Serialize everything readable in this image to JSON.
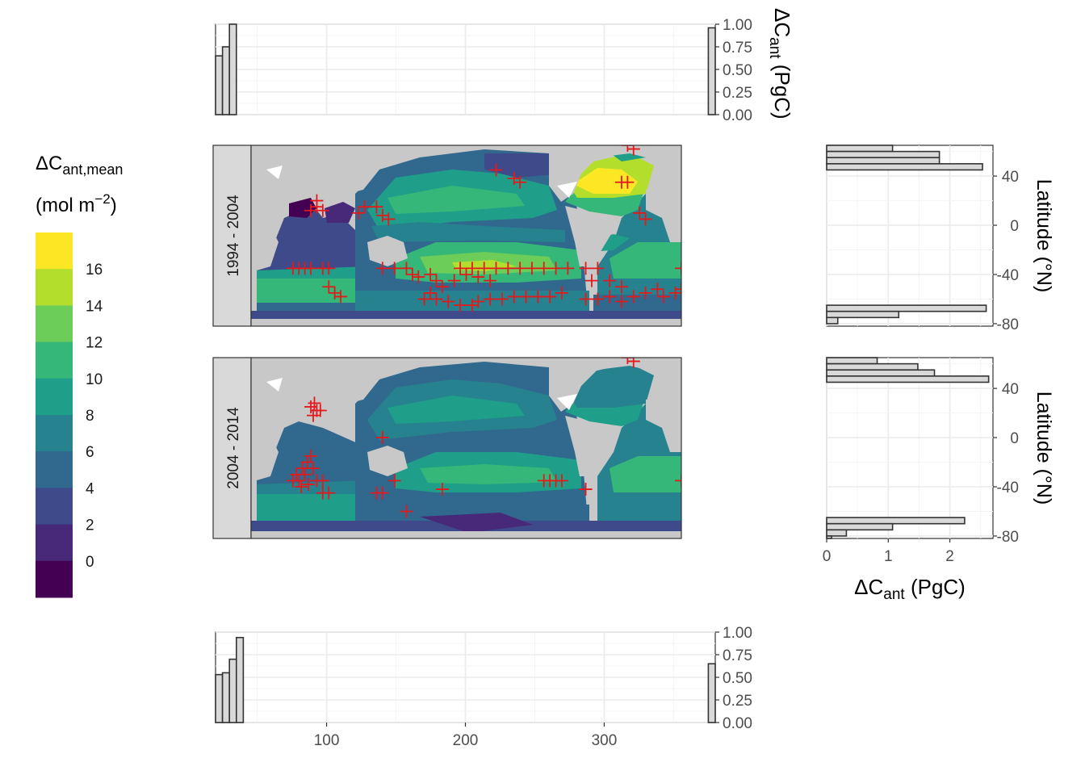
{
  "legend": {
    "title_main": "ΔC",
    "title_sub": "ant,mean",
    "unit_main": "(mol m",
    "unit_sup": "−2",
    "unit_close": ")",
    "colors": [
      "#440154",
      "#482878",
      "#3e4a89",
      "#31688e",
      "#26828e",
      "#1f9e89",
      "#35b779",
      "#6dcd59",
      "#b4de2c",
      "#fde725"
    ],
    "tick_labels": [
      "0",
      "2",
      "4",
      "6",
      "8",
      "10",
      "12",
      "14",
      "16"
    ]
  },
  "chart_data": [
    {
      "type": "bar",
      "name": "top-histogram",
      "xlim": [
        20,
        380
      ],
      "ylim": [
        0,
        1
      ],
      "y_ticks": [
        "0.00",
        "0.25",
        "0.50",
        "0.75",
        "1.00"
      ],
      "x_grid": [
        100,
        200,
        300
      ],
      "ylabel_main": "ΔC",
      "ylabel_sub": "ant",
      "ylabel_unit": " (PgC)",
      "bars": [
        {
          "x0": 20,
          "x1": 25,
          "value": 0.65
        },
        {
          "x0": 25,
          "x1": 30,
          "value": 0.75
        },
        {
          "x0": 30,
          "x1": 35,
          "value": 1.0
        },
        {
          "x0": 375,
          "x1": 380,
          "value": 0.96
        }
      ]
    },
    {
      "type": "bar",
      "name": "bottom-histogram",
      "xlim": [
        20,
        380
      ],
      "ylim": [
        0,
        1
      ],
      "y_ticks": [
        "0.00",
        "0.25",
        "0.50",
        "0.75",
        "1.00"
      ],
      "x_ticks": [
        "100",
        "200",
        "300"
      ],
      "bars": [
        {
          "x0": 20,
          "x1": 25,
          "value": 0.53
        },
        {
          "x0": 25,
          "x1": 30,
          "value": 0.55
        },
        {
          "x0": 30,
          "x1": 35,
          "value": 0.7
        },
        {
          "x0": 35,
          "x1": 40,
          "value": 0.94
        },
        {
          "x0": 375,
          "x1": 380,
          "value": 0.65
        }
      ]
    },
    {
      "type": "bar",
      "name": "right-histogram-1994-2004",
      "orientation": "horizontal",
      "xlim": [
        0,
        2.7
      ],
      "ylim": [
        -82,
        65
      ],
      "y_ticks": [
        "40",
        "0",
        "-40",
        "-80"
      ],
      "ylabel": "Latitude (°N)",
      "bars": [
        {
          "lat0": 60,
          "lat1": 65,
          "value": 1.07
        },
        {
          "lat0": 55,
          "lat1": 60,
          "value": 1.83
        },
        {
          "lat0": 50,
          "lat1": 55,
          "value": 1.83
        },
        {
          "lat0": 45,
          "lat1": 50,
          "value": 2.53
        },
        {
          "lat0": -70,
          "lat1": -65,
          "value": 2.59
        },
        {
          "lat0": -75,
          "lat1": -70,
          "value": 1.17
        },
        {
          "lat0": -80,
          "lat1": -75,
          "value": 0.18
        }
      ]
    },
    {
      "type": "bar",
      "name": "right-histogram-2004-2014",
      "orientation": "horizontal",
      "xlim": [
        0,
        2.7
      ],
      "ylim": [
        -82,
        65
      ],
      "y_ticks": [
        "40",
        "0",
        "-40",
        "-80"
      ],
      "x_ticks": [
        "0",
        "1",
        "2"
      ],
      "ylabel": "Latitude (°N)",
      "xlabel_main": "ΔC",
      "xlabel_sub": "ant",
      "xlabel_unit": " (PgC)",
      "bars": [
        {
          "lat0": 60,
          "lat1": 65,
          "value": 0.82
        },
        {
          "lat0": 55,
          "lat1": 60,
          "value": 1.48
        },
        {
          "lat0": 50,
          "lat1": 55,
          "value": 1.75
        },
        {
          "lat0": 45,
          "lat1": 50,
          "value": 2.63
        },
        {
          "lat0": -70,
          "lat1": -65,
          "value": 2.24
        },
        {
          "lat0": -75,
          "lat1": -70,
          "value": 1.07
        },
        {
          "lat0": -80,
          "lat1": -75,
          "value": 0.32
        },
        {
          "lat0": -82,
          "lat1": -80,
          "value": 0.08
        }
      ]
    },
    {
      "type": "heatmap",
      "name": "map-1994-2004",
      "strip_label": "1994 - 2004",
      "xlim": [
        20,
        380
      ],
      "ylim": [
        -82,
        65
      ],
      "markers": [
        [
          55,
          -35
        ],
        [
          60,
          -35
        ],
        [
          65,
          -35
        ],
        [
          70,
          -35
        ],
        [
          80,
          -35
        ],
        [
          85,
          -35
        ],
        [
          70,
          12
        ],
        [
          75,
          15
        ],
        [
          80,
          12
        ],
        [
          75,
          20
        ],
        [
          110,
          10
        ],
        [
          115,
          15
        ],
        [
          125,
          15
        ],
        [
          130,
          8
        ],
        [
          135,
          5
        ],
        [
          85,
          -50
        ],
        [
          90,
          -55
        ],
        [
          95,
          -58
        ],
        [
          130,
          -35
        ],
        [
          140,
          -35
        ],
        [
          150,
          -35
        ],
        [
          155,
          -40
        ],
        [
          160,
          -42
        ],
        [
          170,
          -40
        ],
        [
          175,
          -45
        ],
        [
          180,
          -50
        ],
        [
          170,
          -55
        ],
        [
          165,
          -60
        ],
        [
          175,
          -60
        ],
        [
          185,
          -62
        ],
        [
          195,
          -65
        ],
        [
          205,
          -65
        ],
        [
          210,
          -62
        ],
        [
          220,
          -60
        ],
        [
          230,
          -60
        ],
        [
          240,
          -58
        ],
        [
          250,
          -58
        ],
        [
          260,
          -58
        ],
        [
          270,
          -58
        ],
        [
          280,
          -55
        ],
        [
          195,
          -35
        ],
        [
          205,
          -35
        ],
        [
          215,
          -35
        ],
        [
          225,
          -35
        ],
        [
          235,
          -35
        ],
        [
          245,
          -35
        ],
        [
          255,
          -35
        ],
        [
          265,
          -35
        ],
        [
          275,
          -35
        ],
        [
          285,
          -35
        ],
        [
          210,
          -42
        ],
        [
          220,
          -45
        ],
        [
          200,
          -40
        ],
        [
          190,
          -45
        ],
        [
          225,
          45
        ],
        [
          240,
          38
        ],
        [
          245,
          35
        ],
        [
          330,
          35
        ],
        [
          335,
          35
        ],
        [
          345,
          10
        ],
        [
          350,
          5
        ],
        [
          300,
          -60
        ],
        [
          310,
          -60
        ],
        [
          320,
          -58
        ],
        [
          330,
          -62
        ],
        [
          340,
          -58
        ],
        [
          350,
          -55
        ],
        [
          360,
          -52
        ],
        [
          365,
          -58
        ],
        [
          375,
          -55
        ],
        [
          380,
          -52
        ],
        [
          335,
          65
        ],
        [
          340,
          62
        ],
        [
          300,
          -35
        ],
        [
          310,
          -35
        ],
        [
          320,
          -45
        ],
        [
          330,
          -50
        ],
        [
          305,
          -45
        ],
        [
          380,
          -35
        ]
      ]
    },
    {
      "type": "heatmap",
      "name": "map-2004-2014",
      "strip_label": "2004 - 2014",
      "xlim": [
        20,
        380
      ],
      "ylim": [
        -82,
        65
      ],
      "markers": [
        [
          60,
          -35
        ],
        [
          65,
          -30
        ],
        [
          55,
          -35
        ],
        [
          62,
          -40
        ],
        [
          68,
          -38
        ],
        [
          58,
          -30
        ],
        [
          63,
          -25
        ],
        [
          67,
          -20
        ],
        [
          70,
          -15
        ],
        [
          72,
          -25
        ],
        [
          75,
          -35
        ],
        [
          80,
          -35
        ],
        [
          70,
          25
        ],
        [
          73,
          28
        ],
        [
          75,
          22
        ],
        [
          72,
          18
        ],
        [
          78,
          22
        ],
        [
          80,
          -45
        ],
        [
          85,
          -45
        ],
        [
          125,
          -45
        ],
        [
          130,
          -45
        ],
        [
          140,
          -35
        ],
        [
          150,
          -60
        ],
        [
          130,
          0
        ],
        [
          180,
          -42
        ],
        [
          265,
          -35
        ],
        [
          270,
          -35
        ],
        [
          275,
          -35
        ],
        [
          280,
          -35
        ],
        [
          300,
          -42
        ],
        [
          380,
          -35
        ],
        [
          335,
          65
        ],
        [
          340,
          62
        ]
      ]
    }
  ]
}
